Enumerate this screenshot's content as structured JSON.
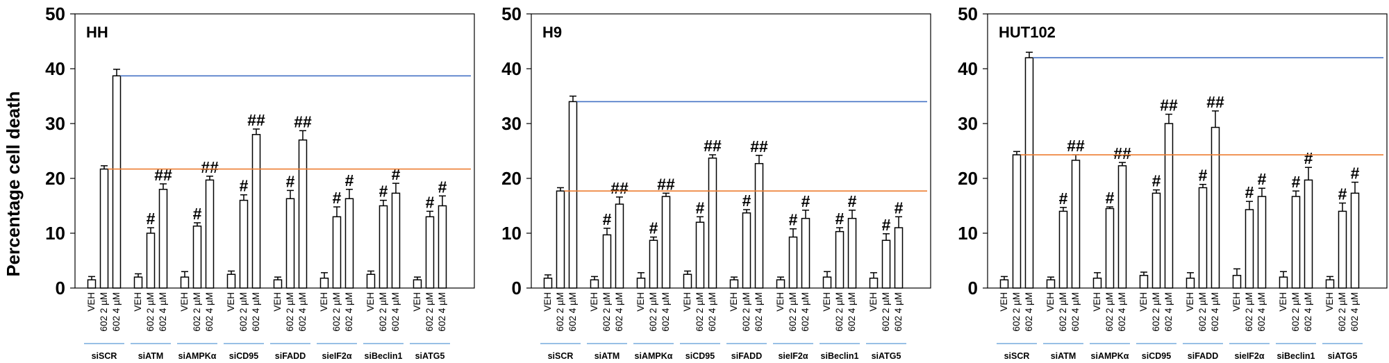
{
  "figure": {
    "ylabel": "Percentage cell death",
    "bar_labels": [
      "VEH",
      "602 2 µM",
      "602 4 µM"
    ],
    "colors": {
      "bar_fill": "#ffffff",
      "bar_stroke": "#000000",
      "blue_line": "#4472c4",
      "orange_line": "#ed7d31",
      "group_underline": "#5b9bd5"
    }
  },
  "chart_data": [
    {
      "type": "bar",
      "title": "HH",
      "ylim": [
        0,
        50
      ],
      "yticks": [
        0,
        10,
        20,
        30,
        40,
        50
      ],
      "groups": [
        "siSCR",
        "siATM",
        "siAMPKα",
        "siCD95",
        "siFADD",
        "sieIF2α",
        "siBeclin1",
        "siATG5"
      ],
      "series": [
        {
          "name": "VEH",
          "values": [
            1.5,
            2.0,
            2.0,
            2.5,
            1.5,
            1.8,
            2.5,
            1.5
          ],
          "errors": [
            0.6,
            0.6,
            1.0,
            0.6,
            0.5,
            1.0,
            0.6,
            0.5
          ]
        },
        {
          "name": "602 2 µM",
          "values": [
            21.7,
            10.0,
            11.3,
            16.0,
            16.3,
            13.0,
            15.0,
            13.0
          ],
          "errors": [
            0.6,
            1.0,
            0.6,
            1.0,
            1.5,
            1.8,
            1.0,
            1.0
          ]
        },
        {
          "name": "602 4 µM",
          "values": [
            38.7,
            18.0,
            19.7,
            28.0,
            27.0,
            16.3,
            17.3,
            15.0
          ],
          "errors": [
            1.2,
            1.0,
            0.7,
            1.0,
            1.7,
            1.7,
            1.8,
            1.8
          ]
        }
      ],
      "annotations": [
        [
          "",
          "",
          ""
        ],
        [
          "",
          "#",
          "##"
        ],
        [
          "",
          "#",
          "##"
        ],
        [
          "",
          "#",
          "##"
        ],
        [
          "",
          "#",
          "##"
        ],
        [
          "",
          "#",
          "#"
        ],
        [
          "",
          "#",
          "#"
        ],
        [
          "",
          "#",
          "#"
        ]
      ],
      "reference_lines": {
        "blue": 38.7,
        "orange": 21.7
      }
    },
    {
      "type": "bar",
      "title": "H9",
      "ylim": [
        0,
        50
      ],
      "yticks": [
        0,
        10,
        20,
        30,
        40,
        50
      ],
      "groups": [
        "siSCR",
        "siATM",
        "siAMPKα",
        "siCD95",
        "siFADD",
        "sieIF2α",
        "siBeclin1",
        "siATG5"
      ],
      "series": [
        {
          "name": "VEH",
          "values": [
            1.8,
            1.5,
            1.8,
            2.5,
            1.5,
            1.5,
            2.0,
            1.8
          ],
          "errors": [
            0.6,
            0.6,
            1.0,
            0.6,
            0.5,
            0.5,
            1.0,
            1.0
          ]
        },
        {
          "name": "602 2 µM",
          "values": [
            17.7,
            9.7,
            8.7,
            12.0,
            13.7,
            9.3,
            10.3,
            8.7
          ],
          "errors": [
            0.6,
            1.2,
            0.6,
            1.0,
            0.6,
            1.5,
            0.7,
            1.2
          ]
        },
        {
          "name": "602 4 µM",
          "values": [
            34.0,
            15.3,
            16.7,
            23.7,
            22.7,
            12.7,
            12.7,
            11.0
          ],
          "errors": [
            1.0,
            1.3,
            0.6,
            0.6,
            1.5,
            1.5,
            1.5,
            2.0
          ]
        }
      ],
      "annotations": [
        [
          "",
          "",
          ""
        ],
        [
          "",
          "#",
          "##"
        ],
        [
          "",
          "#",
          "##"
        ],
        [
          "",
          "#",
          "##"
        ],
        [
          "",
          "#",
          "##"
        ],
        [
          "",
          "#",
          "#"
        ],
        [
          "",
          "#",
          "#"
        ],
        [
          "",
          "#",
          "#"
        ]
      ],
      "reference_lines": {
        "blue": 34.0,
        "orange": 17.7
      }
    },
    {
      "type": "bar",
      "title": "HUT102",
      "ylim": [
        0,
        50
      ],
      "yticks": [
        0,
        10,
        20,
        30,
        40,
        50
      ],
      "groups": [
        "siSCR",
        "siATM",
        "siAMPKα",
        "siCD95",
        "siFADD",
        "sieIF2α",
        "siBeclin1",
        "siATG5"
      ],
      "series": [
        {
          "name": "VEH",
          "values": [
            1.5,
            1.5,
            1.8,
            2.3,
            1.8,
            2.3,
            2.0,
            1.5
          ],
          "errors": [
            0.6,
            0.5,
            1.0,
            0.6,
            1.0,
            1.2,
            1.0,
            0.6
          ]
        },
        {
          "name": "602 2 µM",
          "values": [
            24.3,
            14.0,
            14.5,
            17.3,
            18.3,
            14.3,
            16.7,
            14.0
          ],
          "errors": [
            0.6,
            0.7,
            0.3,
            0.6,
            0.6,
            1.5,
            1.0,
            1.5
          ]
        },
        {
          "name": "602 4 µM",
          "values": [
            42.0,
            23.3,
            22.3,
            30.0,
            29.3,
            16.7,
            19.7,
            17.3
          ],
          "errors": [
            1.0,
            1.0,
            0.6,
            1.7,
            3.0,
            1.5,
            2.3,
            2.0
          ]
        }
      ],
      "annotations": [
        [
          "",
          "",
          ""
        ],
        [
          "",
          "#",
          "##"
        ],
        [
          "",
          "#",
          "##"
        ],
        [
          "",
          "#",
          "##"
        ],
        [
          "",
          "#",
          "##"
        ],
        [
          "",
          "#",
          "#"
        ],
        [
          "",
          "#",
          "#"
        ],
        [
          "",
          "#",
          "#"
        ]
      ],
      "reference_lines": {
        "blue": 42.0,
        "orange": 24.3
      }
    }
  ]
}
